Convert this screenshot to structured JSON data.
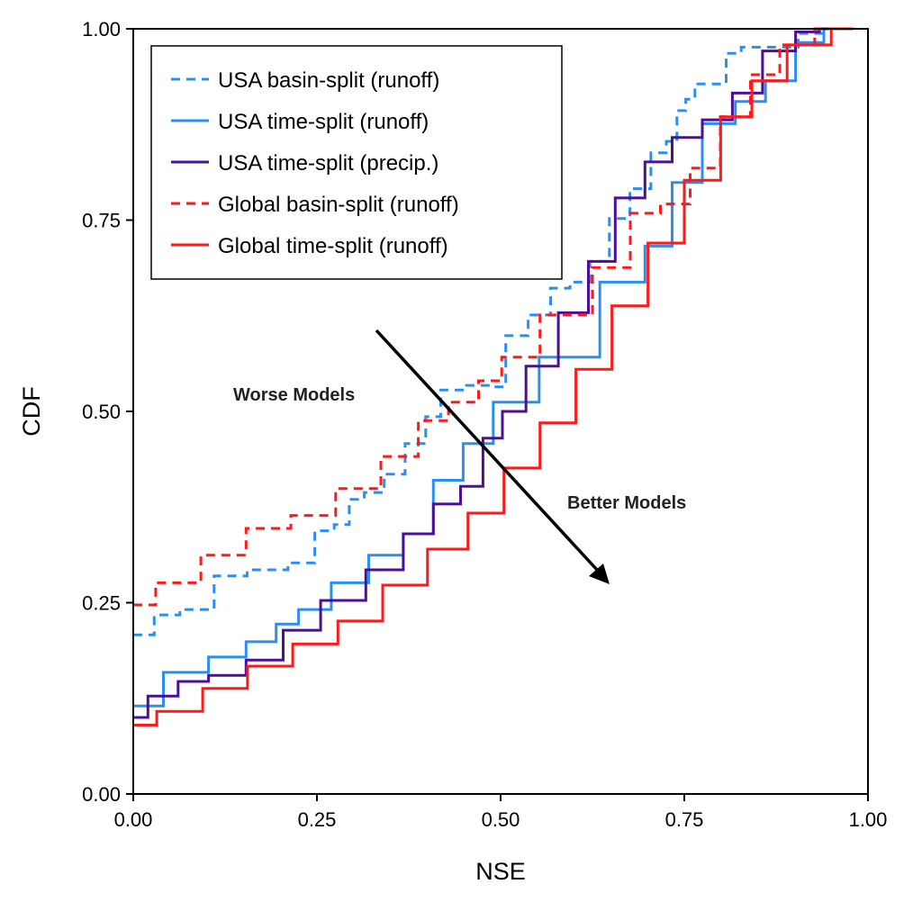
{
  "chart_data": {
    "type": "line",
    "title": "",
    "xlabel": "NSE",
    "ylabel": "CDF",
    "xlim": [
      0,
      1
    ],
    "ylim": [
      0,
      1
    ],
    "xticks": [
      "0.00",
      "0.25",
      "0.50",
      "0.75",
      "1.00"
    ],
    "yticks": [
      "0.00",
      "0.25",
      "0.50",
      "0.75",
      "1.00"
    ],
    "grid": false,
    "legend_position": "top-left",
    "annotations": {
      "worse": "Worse Models",
      "better": "Better Models"
    },
    "series": [
      {
        "name": "USA basin-split (runoff)",
        "color": "#2b8ff0",
        "dash": true,
        "x": [
          0,
          0.024,
          0.033,
          0.094,
          0.126,
          0.184,
          0.237,
          0.257,
          0.29,
          0.298,
          0.331,
          0.352,
          0.388,
          0.408,
          0.429,
          0.478,
          0.493,
          0.521,
          0.554,
          0.582,
          0.607,
          0.636,
          0.66,
          0.692,
          0.717,
          0.734,
          0.746,
          0.758,
          0.771,
          0.799,
          0.815,
          0.84,
          0.888,
          0.922,
          0.958
        ],
        "y": [
          0.208,
          0.208,
          0.234,
          0.241,
          0.285,
          0.293,
          0.302,
          0.344,
          0.352,
          0.385,
          0.394,
          0.418,
          0.458,
          0.493,
          0.528,
          0.534,
          0.532,
          0.599,
          0.626,
          0.661,
          0.669,
          0.696,
          0.752,
          0.791,
          0.838,
          0.853,
          0.893,
          0.908,
          0.928,
          0.928,
          0.968,
          0.976,
          0.976,
          0.994,
          1.0
        ]
      },
      {
        "name": "USA time-split (runoff)",
        "color": "#2b8ff0",
        "dash": false,
        "x": [
          0,
          0.082,
          0.123,
          0.184,
          0.205,
          0.245,
          0.294,
          0.347,
          0.388,
          0.429,
          0.469,
          0.511,
          0.594,
          0.676,
          0.717,
          0.75,
          0.799,
          0.84,
          0.881,
          0.922,
          0.958
        ],
        "y": [
          0.115,
          0.159,
          0.179,
          0.199,
          0.222,
          0.241,
          0.276,
          0.312,
          0.34,
          0.41,
          0.458,
          0.512,
          0.571,
          0.669,
          0.716,
          0.799,
          0.876,
          0.905,
          0.932,
          0.982,
          1.0
        ]
      },
      {
        "name": "USA time-split (precip.)",
        "color": "#4b0f9a",
        "dash": false,
        "x": [
          0,
          0.04,
          0.082,
          0.123,
          0.184,
          0.224,
          0.286,
          0.347,
          0.388,
          0.429,
          0.462,
          0.49,
          0.515,
          0.554,
          0.603,
          0.636,
          0.676,
          0.717,
          0.75,
          0.799,
          0.832,
          0.881,
          0.922,
          0.946
        ],
        "y": [
          0.1,
          0.128,
          0.147,
          0.155,
          0.175,
          0.214,
          0.253,
          0.293,
          0.34,
          0.379,
          0.402,
          0.465,
          0.5,
          0.559,
          0.629,
          0.696,
          0.779,
          0.826,
          0.858,
          0.881,
          0.916,
          0.971,
          0.996,
          1.0
        ]
      },
      {
        "name": "Global basin-split (runoff)",
        "color": "#ff1a1a",
        "dash": true,
        "x": [
          0,
          0.061,
          0.123,
          0.184,
          0.245,
          0.306,
          0.368,
          0.408,
          0.45,
          0.49,
          0.513,
          0.594,
          0.656,
          0.697,
          0.738,
          0.778,
          0.82,
          0.86,
          0.9,
          0.955
        ],
        "y": [
          0.247,
          0.276,
          0.312,
          0.347,
          0.364,
          0.399,
          0.441,
          0.488,
          0.512,
          0.54,
          0.571,
          0.626,
          0.688,
          0.759,
          0.771,
          0.818,
          0.885,
          0.94,
          0.979,
          1.0
        ]
      },
      {
        "name": "Global time-split (runoff)",
        "color": "#ff1a1a",
        "dash": false,
        "x": [
          0,
          0.064,
          0.125,
          0.186,
          0.248,
          0.309,
          0.37,
          0.431,
          0.48,
          0.529,
          0.578,
          0.627,
          0.676,
          0.725,
          0.775,
          0.824,
          0.86,
          0.92,
          0.98
        ],
        "y": [
          0.09,
          0.108,
          0.138,
          0.167,
          0.196,
          0.226,
          0.273,
          0.32,
          0.367,
          0.426,
          0.485,
          0.555,
          0.638,
          0.72,
          0.802,
          0.885,
          0.932,
          0.979,
          1.0
        ]
      }
    ]
  }
}
